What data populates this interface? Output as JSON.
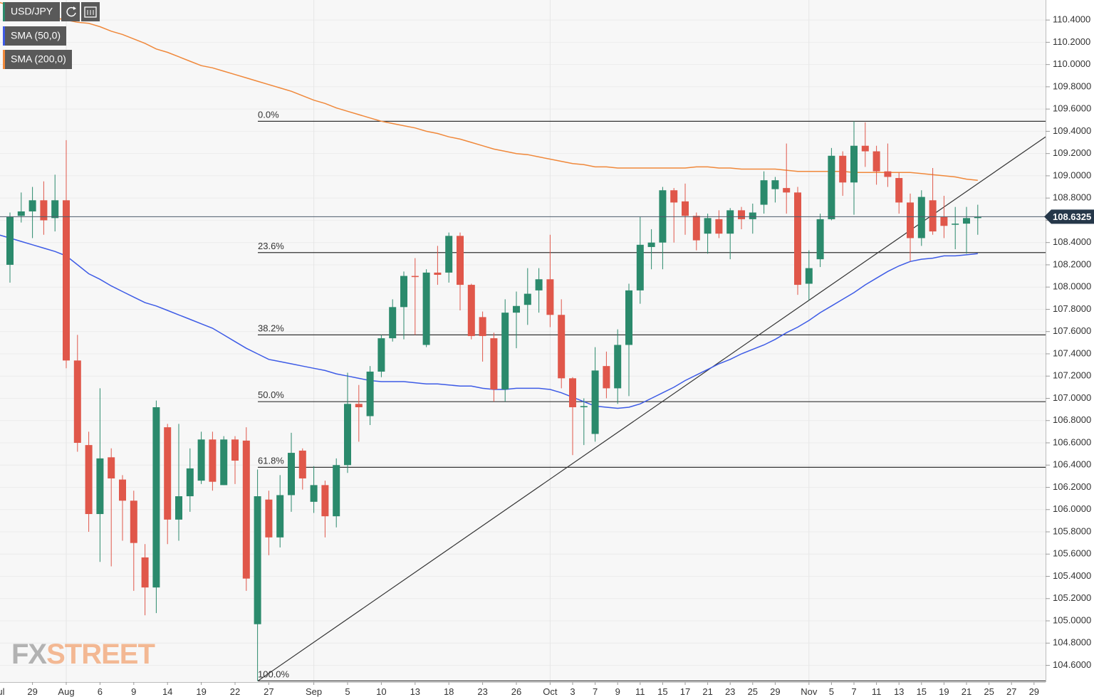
{
  "chart_data": {
    "type": "candlestick",
    "ylim": [
      104.45,
      110.58
    ],
    "yticks": [
      {
        "value": 104.6,
        "label": "104.6000"
      },
      {
        "value": 104.8,
        "label": "104.8000"
      },
      {
        "value": 105.0,
        "label": "105.0000"
      },
      {
        "value": 105.2,
        "label": "105.2000"
      },
      {
        "value": 105.4,
        "label": "105.4000"
      },
      {
        "value": 105.6,
        "label": "105.6000"
      },
      {
        "value": 105.8,
        "label": "105.8000"
      },
      {
        "value": 106.0,
        "label": "106.0000"
      },
      {
        "value": 106.2,
        "label": "106.2000"
      },
      {
        "value": 106.4,
        "label": "106.4000"
      },
      {
        "value": 106.6,
        "label": "106.6000"
      },
      {
        "value": 106.8,
        "label": "106.8000"
      },
      {
        "value": 107.0,
        "label": "107.0000"
      },
      {
        "value": 107.2,
        "label": "107.2000"
      },
      {
        "value": 107.4,
        "label": "107.4000"
      },
      {
        "value": 107.6,
        "label": "107.6000"
      },
      {
        "value": 107.8,
        "label": "107.8000"
      },
      {
        "value": 108.0,
        "label": "108.0000"
      },
      {
        "value": 108.2,
        "label": "108.2000"
      },
      {
        "value": 108.4,
        "label": "108.4000"
      },
      {
        "value": 108.6,
        "label": "108.6000"
      },
      {
        "value": 108.8,
        "label": "108.8000"
      },
      {
        "value": 109.0,
        "label": "109.0000"
      },
      {
        "value": 109.2,
        "label": "109.2000"
      },
      {
        "value": 109.4,
        "label": "109.4000"
      },
      {
        "value": 109.6,
        "label": "109.6000"
      },
      {
        "value": 109.8,
        "label": "109.8000"
      },
      {
        "value": 110.0,
        "label": "110.0000"
      },
      {
        "value": 110.2,
        "label": "110.2000"
      },
      {
        "value": 110.4,
        "label": "110.4000"
      }
    ],
    "grid": true,
    "categories": [
      "Jul",
      null,
      null,
      "29",
      null,
      null,
      "Aug",
      null,
      null,
      "6",
      null,
      null,
      "9",
      null,
      null,
      "14",
      null,
      null,
      "19",
      null,
      null,
      "22",
      null,
      null,
      "27",
      null,
      null,
      null,
      "Sep",
      null,
      null,
      "5",
      null,
      null,
      "10",
      null,
      null,
      "13",
      null,
      null,
      "18",
      null,
      null,
      "23",
      null,
      null,
      "26",
      null,
      null,
      "Oct",
      null,
      "3",
      null,
      "7",
      null,
      "9",
      null,
      "11",
      null,
      "15",
      null,
      "17",
      null,
      "21",
      null,
      "23",
      null,
      "25",
      null,
      "29",
      null,
      null,
      "Nov",
      null,
      "5",
      null,
      "7",
      null,
      "11",
      null,
      "13",
      null,
      "15",
      null,
      "19",
      null,
      "21",
      null,
      "25",
      null,
      "27",
      null,
      "29"
    ],
    "series": [
      {
        "name": "USD/JPY",
        "type": "candlestick",
        "up_color": "#2b8a6c",
        "down_color": "#e0574a",
        "open": [
          null,
          108.2,
          108.64,
          108.68,
          108.78,
          108.62,
          108.78,
          107.34,
          106.58,
          105.96,
          106.47,
          106.27,
          106.08,
          105.57,
          105.3,
          106.74,
          105.91,
          106.12,
          106.26,
          106.63,
          106.22,
          106.63,
          106.62,
          104.97,
          106.09,
          105.75,
          106.13,
          106.53,
          106.07,
          106.22,
          105.94,
          106.4,
          106.95,
          106.84,
          107.24,
          107.54,
          107.82,
          108.1,
          107.48,
          108.13,
          108.13,
          108.46,
          108.02,
          107.73,
          107.54,
          107.08,
          107.77,
          107.84,
          107.97,
          108.07,
          107.75,
          107.18,
          106.92,
          106.68,
          107.29,
          107.09,
          107.48,
          107.97,
          108.36,
          108.4,
          108.87,
          108.77,
          108.64,
          108.48,
          108.61,
          108.48,
          108.69,
          108.61,
          108.74,
          108.88,
          108.89,
          108.85,
          108.03,
          108.25,
          108.61,
          109.18,
          108.94,
          109.27,
          109.22,
          109.04,
          108.98,
          108.76,
          108.44,
          108.78,
          108.63,
          108.56,
          108.57,
          108.62,
          null,
          null,
          null,
          null,
          null
        ],
        "high": [
          null,
          108.67,
          108.85,
          108.9,
          108.95,
          109.01,
          109.32,
          107.57,
          106.7,
          107.09,
          106.55,
          106.31,
          106.17,
          105.69,
          106.98,
          106.77,
          106.77,
          106.55,
          106.7,
          106.7,
          106.66,
          106.66,
          106.74,
          106.36,
          106.17,
          106.31,
          106.69,
          106.55,
          106.39,
          106.26,
          106.46,
          107.23,
          107.12,
          107.29,
          107.57,
          107.89,
          108.14,
          108.26,
          108.16,
          108.37,
          108.49,
          108.49,
          108.03,
          107.78,
          107.59,
          107.89,
          107.96,
          108.17,
          108.17,
          108.47,
          107.89,
          107.19,
          107.0,
          107.46,
          107.42,
          107.62,
          108.03,
          108.63,
          108.52,
          108.9,
          108.89,
          108.93,
          108.67,
          108.66,
          108.69,
          108.71,
          108.72,
          108.75,
          109.04,
          108.99,
          109.29,
          108.9,
          108.33,
          108.66,
          109.25,
          109.22,
          109.49,
          109.48,
          109.27,
          109.29,
          109.03,
          108.84,
          108.87,
          109.07,
          108.82,
          108.72,
          108.72,
          108.74,
          null,
          null,
          null,
          null,
          null
        ],
        "low": [
          null,
          108.04,
          108.58,
          108.44,
          108.47,
          108.5,
          107.27,
          106.52,
          105.8,
          105.53,
          105.49,
          105.72,
          105.27,
          105.05,
          105.07,
          105.69,
          105.72,
          105.98,
          106.23,
          106.17,
          106.22,
          106.23,
          105.27,
          104.46,
          105.59,
          105.66,
          105.98,
          106.18,
          105.97,
          105.75,
          105.84,
          106.33,
          106.61,
          106.76,
          107.19,
          107.51,
          107.53,
          107.57,
          107.46,
          108.02,
          108.04,
          107.79,
          107.53,
          107.33,
          106.97,
          106.97,
          107.45,
          107.66,
          107.77,
          107.64,
          107.09,
          106.49,
          106.58,
          106.61,
          107.0,
          106.95,
          107.02,
          107.85,
          108.16,
          108.16,
          108.4,
          108.47,
          108.33,
          108.3,
          108.44,
          108.25,
          108.52,
          108.48,
          108.66,
          108.76,
          108.66,
          107.93,
          107.88,
          108.18,
          108.6,
          108.82,
          108.65,
          109.08,
          108.92,
          108.9,
          108.66,
          108.23,
          108.37,
          108.47,
          108.44,
          108.34,
          108.3,
          108.47,
          null,
          null,
          null,
          null,
          null
        ],
        "close": [
          null,
          108.63,
          108.68,
          108.78,
          108.6,
          108.78,
          107.34,
          106.6,
          105.96,
          106.46,
          106.28,
          106.08,
          105.7,
          105.3,
          106.92,
          105.91,
          106.12,
          106.37,
          106.63,
          106.25,
          106.63,
          106.44,
          105.38,
          106.12,
          105.75,
          106.13,
          106.51,
          106.28,
          106.22,
          105.94,
          106.4,
          106.95,
          106.92,
          107.24,
          107.54,
          107.82,
          108.1,
          108.09,
          108.13,
          108.11,
          108.46,
          108.02,
          107.56,
          107.56,
          107.08,
          107.77,
          107.83,
          107.94,
          108.07,
          107.75,
          107.18,
          106.92,
          106.93,
          107.25,
          107.09,
          107.48,
          107.97,
          108.38,
          108.4,
          108.87,
          108.76,
          108.64,
          108.42,
          108.62,
          108.48,
          108.69,
          108.61,
          108.67,
          108.96,
          108.96,
          108.85,
          108.02,
          108.17,
          108.61,
          109.18,
          108.94,
          109.27,
          109.22,
          109.04,
          108.99,
          108.76,
          108.44,
          108.81,
          108.5,
          108.55,
          108.57,
          108.62,
          108.63,
          null,
          null,
          null,
          null,
          null
        ],
        "legend_color": "#2b8a6c"
      },
      {
        "name": "SMA (50,0)",
        "type": "line",
        "color": "#3d5be6",
        "values": [
          108.47,
          108.44,
          108.41,
          108.38,
          108.35,
          108.32,
          108.28,
          108.2,
          108.12,
          108.07,
          108.01,
          107.96,
          107.91,
          107.86,
          107.83,
          107.79,
          107.75,
          107.71,
          107.67,
          107.63,
          107.57,
          107.51,
          107.45,
          107.4,
          107.35,
          107.33,
          107.31,
          107.29,
          107.27,
          107.25,
          107.22,
          107.2,
          107.18,
          107.16,
          107.15,
          107.15,
          107.15,
          107.14,
          107.13,
          107.13,
          107.12,
          107.11,
          107.11,
          107.09,
          107.08,
          107.08,
          107.09,
          107.09,
          107.09,
          107.08,
          107.05,
          107.01,
          106.97,
          106.93,
          106.92,
          106.91,
          106.92,
          106.95,
          107.0,
          107.05,
          107.1,
          107.16,
          107.21,
          107.26,
          107.31,
          107.35,
          107.4,
          107.44,
          107.48,
          107.53,
          107.59,
          107.64,
          107.7,
          107.77,
          107.83,
          107.89,
          107.95,
          108.02,
          108.08,
          108.14,
          108.19,
          108.23,
          108.25,
          108.26,
          108.28,
          108.28,
          108.29,
          108.3,
          null,
          null,
          null,
          null,
          null
        ]
      },
      {
        "name": "SMA (200,0)",
        "type": "line",
        "color": "#f0883a",
        "values": [
          110.56,
          110.53,
          110.5,
          110.47,
          110.44,
          110.42,
          110.4,
          110.38,
          110.37,
          110.34,
          110.3,
          110.27,
          110.23,
          110.19,
          110.14,
          110.11,
          110.07,
          110.03,
          109.99,
          109.97,
          109.94,
          109.91,
          109.88,
          109.85,
          109.82,
          109.79,
          109.76,
          109.72,
          109.68,
          109.65,
          109.61,
          109.58,
          109.55,
          109.52,
          109.49,
          109.47,
          109.45,
          109.43,
          109.4,
          109.38,
          109.35,
          109.33,
          109.3,
          109.27,
          109.24,
          109.22,
          109.2,
          109.19,
          109.17,
          109.15,
          109.13,
          109.11,
          109.1,
          109.08,
          109.08,
          109.07,
          109.07,
          109.07,
          109.07,
          109.07,
          109.07,
          109.07,
          109.08,
          109.08,
          109.07,
          109.07,
          109.06,
          109.06,
          109.06,
          109.06,
          109.05,
          109.04,
          109.04,
          109.04,
          109.04,
          109.04,
          109.03,
          109.03,
          109.03,
          109.03,
          109.03,
          109.03,
          109.02,
          109.01,
          109.0,
          108.99,
          108.97,
          108.96,
          null,
          null,
          null,
          null,
          null
        ]
      }
    ],
    "last_price": 108.6325,
    "fib_levels": [
      {
        "label": "0.0%",
        "value": 109.49
      },
      {
        "label": "23.6%",
        "value": 108.31
      },
      {
        "label": "38.2%",
        "value": 107.57
      },
      {
        "label": "50.0%",
        "value": 106.97
      },
      {
        "label": "61.8%",
        "value": 106.38
      },
      {
        "label": "100.0%",
        "value": 104.46
      }
    ],
    "trendline": [
      104.46,
      109.35
    ],
    "logo": [
      "FX",
      "STREET"
    ]
  }
}
